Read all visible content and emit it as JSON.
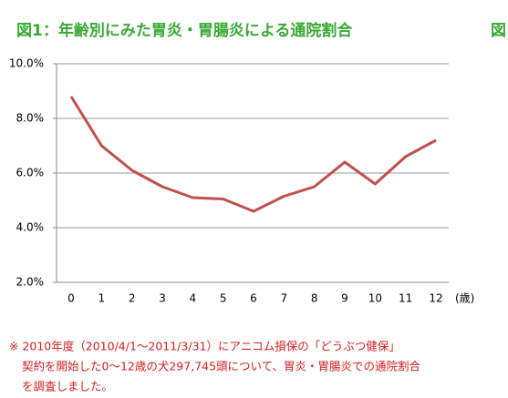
{
  "chart_data": {
    "type": "line",
    "title": "図1：年齢別にみた胃炎・胃腸炎による通院割合",
    "next_title": "図",
    "categories": [
      "0",
      "1",
      "2",
      "3",
      "4",
      "5",
      "6",
      "7",
      "8",
      "9",
      "10",
      "11",
      "12"
    ],
    "x_unit": "(歳)",
    "series": [
      {
        "name": "通院割合",
        "color": "#c0504d",
        "values": [
          8.8,
          7.0,
          6.1,
          5.5,
          5.1,
          5.05,
          4.6,
          5.15,
          5.5,
          6.4,
          5.6,
          6.6,
          7.2
        ]
      }
    ],
    "ylim": [
      2,
      10
    ],
    "yticks": [
      {
        "value": 2,
        "label": "2.0%"
      },
      {
        "value": 4,
        "label": "4.0%"
      },
      {
        "value": 6,
        "label": "6.0%"
      },
      {
        "value": 8,
        "label": "8.0%"
      },
      {
        "value": 10,
        "label": "10.0%"
      }
    ],
    "grid": true
  },
  "footnote": {
    "lines": [
      "※ 2010年度（2010/4/1～2011/3/31）にアニコム損保の「どうぶつ健保」",
      "契約を開始した0～12歳の犬297,745頭について、胃炎・胃腸炎での通院割合",
      "を調査しました。"
    ]
  }
}
